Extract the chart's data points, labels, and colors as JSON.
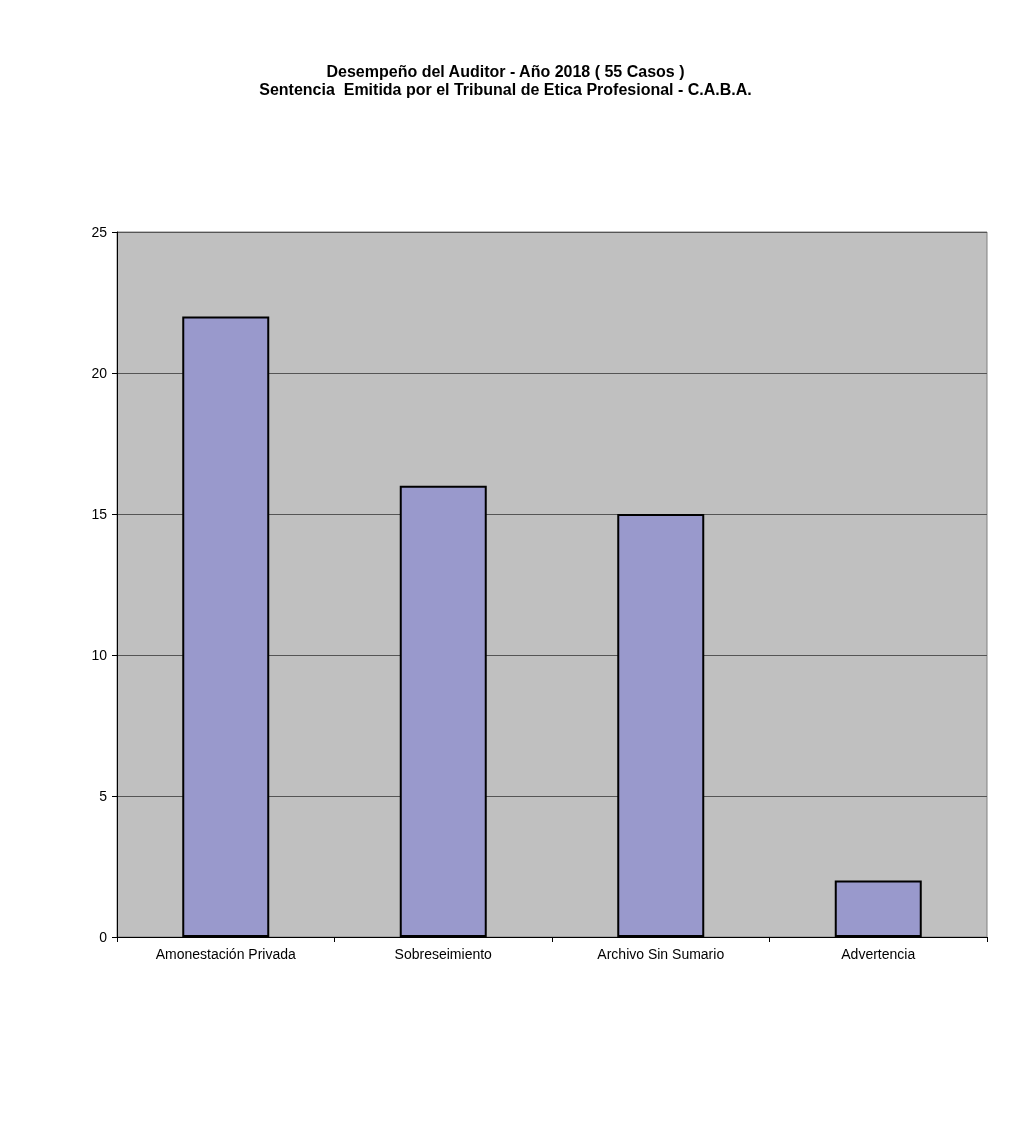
{
  "chart_data": {
    "type": "bar",
    "title": "Desempeño del Auditor - Año 2018 ( 55 Casos )",
    "subtitle": "Sentencia  Emitida por el Tribunal de Etica Profesional - C.A.B.A.",
    "categories": [
      "Amonestación Privada",
      "Sobreseimiento",
      "Archivo Sin Sumario",
      "Advertencia"
    ],
    "values": [
      22,
      16,
      15,
      2
    ],
    "color": "#9999cc",
    "ylim": [
      0,
      25
    ],
    "yticks": [
      0,
      5,
      10,
      15,
      20,
      25
    ],
    "grid": true
  }
}
